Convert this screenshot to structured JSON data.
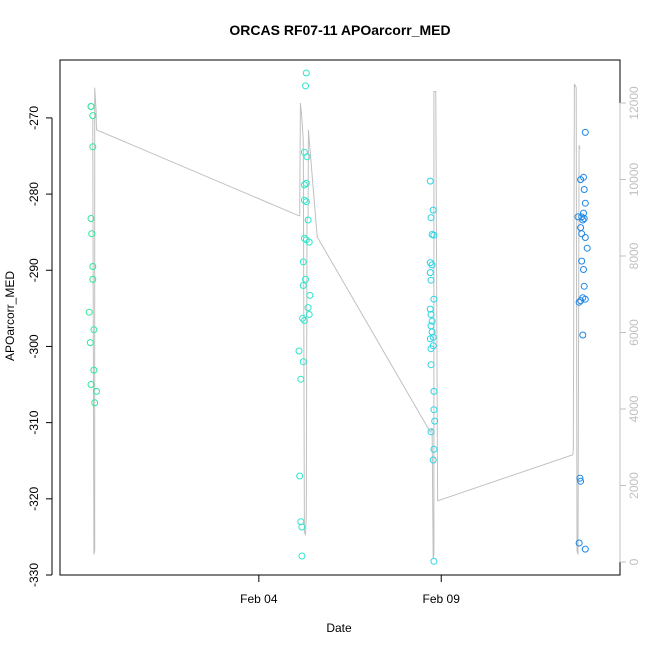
{
  "chart_data": {
    "type": "scatter",
    "title": "ORCAS RF07-11 APOarcorr_MED",
    "xlabel": "Date",
    "ylabel": "APOarcorr_MED",
    "x_ticks": [
      {
        "label": "Feb 04",
        "day": 4
      },
      {
        "label": "Feb 09",
        "day": 9
      }
    ],
    "xlim": [
      -1.45,
      13.9
    ],
    "ylim": [
      -330,
      -262.4
    ],
    "y_ticks": [
      -330,
      -320,
      -310,
      -300,
      -290,
      -280,
      -270
    ],
    "y_tick_labels": [
      "-330",
      "-320",
      "-310",
      "-300",
      "-290",
      "-280",
      "-270"
    ],
    "y2lim": [
      0,
      12000
    ],
    "y2_ticks": [
      0,
      2000,
      4000,
      6000,
      8000,
      10000,
      12000
    ],
    "y2_tick_labels": [
      "0",
      "2000",
      "4000",
      "6000",
      "8000",
      "10000",
      "12000"
    ],
    "grid": false,
    "legend": "none",
    "colors": {
      "altitude_line": "#c0c0c0",
      "axis": "#000000",
      "right_axis": "#c0c0c0",
      "flight_palette": [
        "#2ee89a",
        "#2de6cc",
        "#2bd5e6",
        "#1f88e6"
      ]
    },
    "altitude_trace": [
      [
        -0.55,
        11600
      ],
      [
        -0.55,
        10800
      ],
      [
        -0.52,
        200
      ],
      [
        -0.5,
        300
      ],
      [
        -0.5,
        12400
      ],
      [
        -0.46,
        11800
      ],
      [
        -0.45,
        11300
      ],
      [
        5.1,
        9050
      ],
      [
        5.12,
        9050
      ],
      [
        5.14,
        12000
      ],
      [
        5.18,
        11600
      ],
      [
        5.22,
        11000
      ],
      [
        5.25,
        800
      ],
      [
        5.28,
        700
      ],
      [
        5.3,
        1200
      ],
      [
        5.32,
        8900
      ],
      [
        5.33,
        9000
      ],
      [
        5.35,
        9000
      ],
      [
        5.36,
        11300
      ],
      [
        5.6,
        8500
      ],
      [
        8.7,
        3400
      ],
      [
        8.75,
        3500
      ],
      [
        8.78,
        100
      ],
      [
        8.8,
        200
      ],
      [
        8.8,
        12300
      ],
      [
        8.85,
        12300
      ],
      [
        8.9,
        1600
      ],
      [
        12.6,
        2800
      ],
      [
        12.62,
        2900
      ],
      [
        12.65,
        12500
      ],
      [
        12.7,
        12400
      ],
      [
        12.72,
        300
      ],
      [
        12.75,
        200
      ],
      [
        12.78,
        10900
      ],
      [
        12.8,
        10800
      ]
    ],
    "series": [
      {
        "values": [
          [
            -0.6,
            -268.5
          ],
          [
            -0.6,
            -268.5
          ],
          [
            -0.55,
            -269.7
          ],
          [
            -0.55,
            -273.8
          ],
          [
            -0.6,
            -283.2
          ],
          [
            -0.58,
            -285.2
          ],
          [
            -0.55,
            -289.5
          ],
          [
            -0.55,
            -291.2
          ],
          [
            -0.65,
            -295.5
          ],
          [
            -0.62,
            -299.5
          ],
          [
            -0.52,
            -297.8
          ],
          [
            -0.52,
            -303.1
          ],
          [
            -0.6,
            -305.0
          ],
          [
            -0.45,
            -305.9
          ],
          [
            -0.5,
            -307.4
          ]
        ]
      },
      {
        "values": [
          [
            5.3,
            -264.1
          ],
          [
            5.28,
            -265.8
          ],
          [
            5.25,
            -274.5
          ],
          [
            5.32,
            -275.1
          ],
          [
            5.3,
            -278.6
          ],
          [
            5.25,
            -278.8
          ],
          [
            5.25,
            -280.8
          ],
          [
            5.3,
            -281.0
          ],
          [
            5.35,
            -283.4
          ],
          [
            5.25,
            -285.8
          ],
          [
            5.3,
            -286.0
          ],
          [
            5.38,
            -286.3
          ],
          [
            5.22,
            -288.9
          ],
          [
            5.28,
            -291.2
          ],
          [
            5.22,
            -292.0
          ],
          [
            5.4,
            -293.3
          ],
          [
            5.35,
            -294.9
          ],
          [
            5.38,
            -295.8
          ],
          [
            5.2,
            -296.3
          ],
          [
            5.25,
            -296.6
          ],
          [
            5.1,
            -300.6
          ],
          [
            5.22,
            -302.0
          ],
          [
            5.15,
            -304.3
          ],
          [
            5.12,
            -317.0
          ],
          [
            5.15,
            -323.0
          ],
          [
            5.18,
            -323.7
          ],
          [
            5.18,
            -327.5
          ]
        ]
      },
      {
        "values": [
          [
            8.7,
            -278.3
          ],
          [
            8.78,
            -282.1
          ],
          [
            8.72,
            -283.1
          ],
          [
            8.75,
            -285.3
          ],
          [
            8.8,
            -285.4
          ],
          [
            8.7,
            -289.0
          ],
          [
            8.75,
            -289.3
          ],
          [
            8.7,
            -290.3
          ],
          [
            8.72,
            -291.3
          ],
          [
            8.8,
            -293.8
          ],
          [
            8.7,
            -295.1
          ],
          [
            8.72,
            -295.8
          ],
          [
            8.75,
            -296.7
          ],
          [
            8.72,
            -297.3
          ],
          [
            8.75,
            -298.1
          ],
          [
            8.7,
            -299.0
          ],
          [
            8.78,
            -298.8
          ],
          [
            8.72,
            -300.3
          ],
          [
            8.78,
            -299.9
          ],
          [
            8.72,
            -302.4
          ],
          [
            8.8,
            -305.9
          ],
          [
            8.8,
            -308.3
          ],
          [
            8.82,
            -309.8
          ],
          [
            8.72,
            -311.2
          ],
          [
            8.8,
            -313.5
          ],
          [
            8.78,
            -314.9
          ],
          [
            8.8,
            -328.2
          ]
        ]
      },
      {
        "values": [
          [
            12.95,
            -271.9
          ],
          [
            12.9,
            -277.8
          ],
          [
            12.82,
            -278.1
          ],
          [
            12.92,
            -279.4
          ],
          [
            12.95,
            -281.2
          ],
          [
            12.9,
            -282.5
          ],
          [
            12.75,
            -283.0
          ],
          [
            12.85,
            -283.0
          ],
          [
            12.92,
            -283.2
          ],
          [
            12.88,
            -283.4
          ],
          [
            12.82,
            -284.4
          ],
          [
            12.85,
            -285.2
          ],
          [
            12.95,
            -285.7
          ],
          [
            13.0,
            -287.1
          ],
          [
            12.85,
            -288.8
          ],
          [
            12.9,
            -289.9
          ],
          [
            12.92,
            -292.1
          ],
          [
            12.88,
            -293.6
          ],
          [
            12.95,
            -293.8
          ],
          [
            12.82,
            -294.0
          ],
          [
            12.78,
            -294.2
          ],
          [
            12.88,
            -298.5
          ],
          [
            12.8,
            -317.3
          ],
          [
            12.82,
            -317.7
          ],
          [
            12.78,
            -325.8
          ],
          [
            12.95,
            -326.6
          ]
        ]
      }
    ]
  }
}
